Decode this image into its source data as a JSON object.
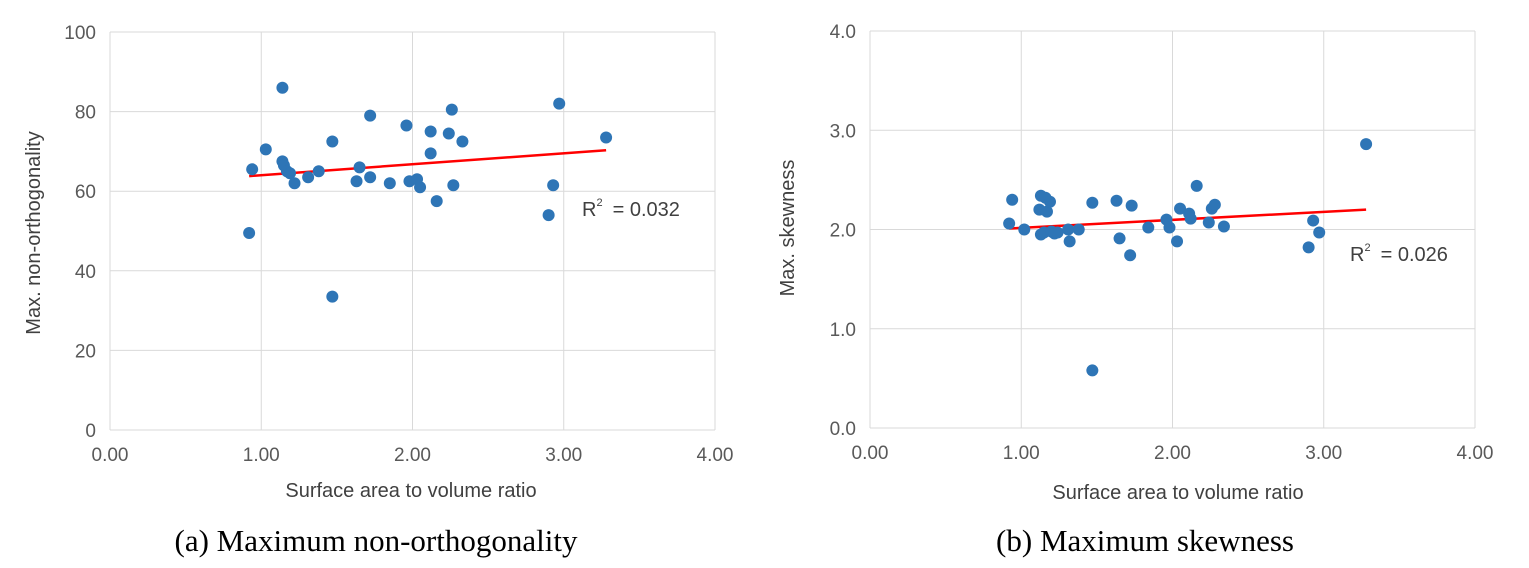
{
  "chart_data": [
    {
      "id": "a",
      "type": "scatter",
      "caption": "(a) Maximum non-orthogonality",
      "xlabel": "Surface area to volume ratio",
      "ylabel": "Max. non-orthogonality",
      "xlim": [
        0,
        4
      ],
      "ylim": [
        0,
        100
      ],
      "xticks": [
        "0.00",
        "1.00",
        "2.00",
        "3.00",
        "4.00"
      ],
      "yticks": [
        "0",
        "20",
        "40",
        "60",
        "80",
        "100"
      ],
      "grid": true,
      "annotation": {
        "r2_label": "R",
        "r2_sup": "2",
        "r2_value": "= 0.032"
      },
      "trendline": {
        "x": [
          0.92,
          3.28
        ],
        "y": [
          63.8,
          70.3
        ]
      },
      "points": [
        [
          0.92,
          49.5
        ],
        [
          0.94,
          65.5
        ],
        [
          1.03,
          70.5
        ],
        [
          1.14,
          67.5
        ],
        [
          1.14,
          86.0
        ],
        [
          1.15,
          66.5
        ],
        [
          1.17,
          65.0
        ],
        [
          1.19,
          64.5
        ],
        [
          1.22,
          62.0
        ],
        [
          1.31,
          63.5
        ],
        [
          1.38,
          65.0
        ],
        [
          1.47,
          33.5
        ],
        [
          1.47,
          72.5
        ],
        [
          1.63,
          62.5
        ],
        [
          1.65,
          66.0
        ],
        [
          1.72,
          79.0
        ],
        [
          1.72,
          63.5
        ],
        [
          1.85,
          62.0
        ],
        [
          1.96,
          76.5
        ],
        [
          1.98,
          62.5
        ],
        [
          2.03,
          63.0
        ],
        [
          2.05,
          61.0
        ],
        [
          2.12,
          75.0
        ],
        [
          2.12,
          69.5
        ],
        [
          2.16,
          57.5
        ],
        [
          2.24,
          74.5
        ],
        [
          2.26,
          80.5
        ],
        [
          2.27,
          61.5
        ],
        [
          2.33,
          72.5
        ],
        [
          2.9,
          54.0
        ],
        [
          2.93,
          61.5
        ],
        [
          2.97,
          82.0
        ],
        [
          3.28,
          73.5
        ]
      ]
    },
    {
      "id": "b",
      "type": "scatter",
      "caption": "(b) Maximum skewness",
      "xlabel": "Surface area to volume ratio",
      "ylabel": "Max. skewness",
      "xlim": [
        0,
        4
      ],
      "ylim": [
        0,
        4
      ],
      "xticks": [
        "0.00",
        "1.00",
        "2.00",
        "3.00",
        "4.00"
      ],
      "yticks": [
        "0.0",
        "1.0",
        "2.0",
        "3.0",
        "4.0"
      ],
      "grid": true,
      "annotation": {
        "r2_label": "R",
        "r2_sup": "2",
        "r2_value": "= 0.026"
      },
      "trendline": {
        "x": [
          0.92,
          3.28
        ],
        "y": [
          2.01,
          2.2
        ]
      },
      "points": [
        [
          0.92,
          2.06
        ],
        [
          0.94,
          2.3
        ],
        [
          1.02,
          2.0
        ],
        [
          1.12,
          2.2
        ],
        [
          1.13,
          2.34
        ],
        [
          1.13,
          1.95
        ],
        [
          1.15,
          1.97
        ],
        [
          1.16,
          2.32
        ],
        [
          1.17,
          2.18
        ],
        [
          1.19,
          2.28
        ],
        [
          1.2,
          1.98
        ],
        [
          1.22,
          1.96
        ],
        [
          1.24,
          1.97
        ],
        [
          1.31,
          2.0
        ],
        [
          1.32,
          1.88
        ],
        [
          1.38,
          2.0
        ],
        [
          1.47,
          0.58
        ],
        [
          1.47,
          2.27
        ],
        [
          1.63,
          2.29
        ],
        [
          1.65,
          1.91
        ],
        [
          1.72,
          1.74
        ],
        [
          1.73,
          2.24
        ],
        [
          1.84,
          2.02
        ],
        [
          1.96,
          2.1
        ],
        [
          1.98,
          2.02
        ],
        [
          2.03,
          1.88
        ],
        [
          2.05,
          2.21
        ],
        [
          2.11,
          2.16
        ],
        [
          2.12,
          2.11
        ],
        [
          2.16,
          2.44
        ],
        [
          2.24,
          2.07
        ],
        [
          2.26,
          2.21
        ],
        [
          2.28,
          2.25
        ],
        [
          2.34,
          2.03
        ],
        [
          2.9,
          1.82
        ],
        [
          2.93,
          2.09
        ],
        [
          2.97,
          1.97
        ],
        [
          3.28,
          2.86
        ]
      ]
    }
  ]
}
